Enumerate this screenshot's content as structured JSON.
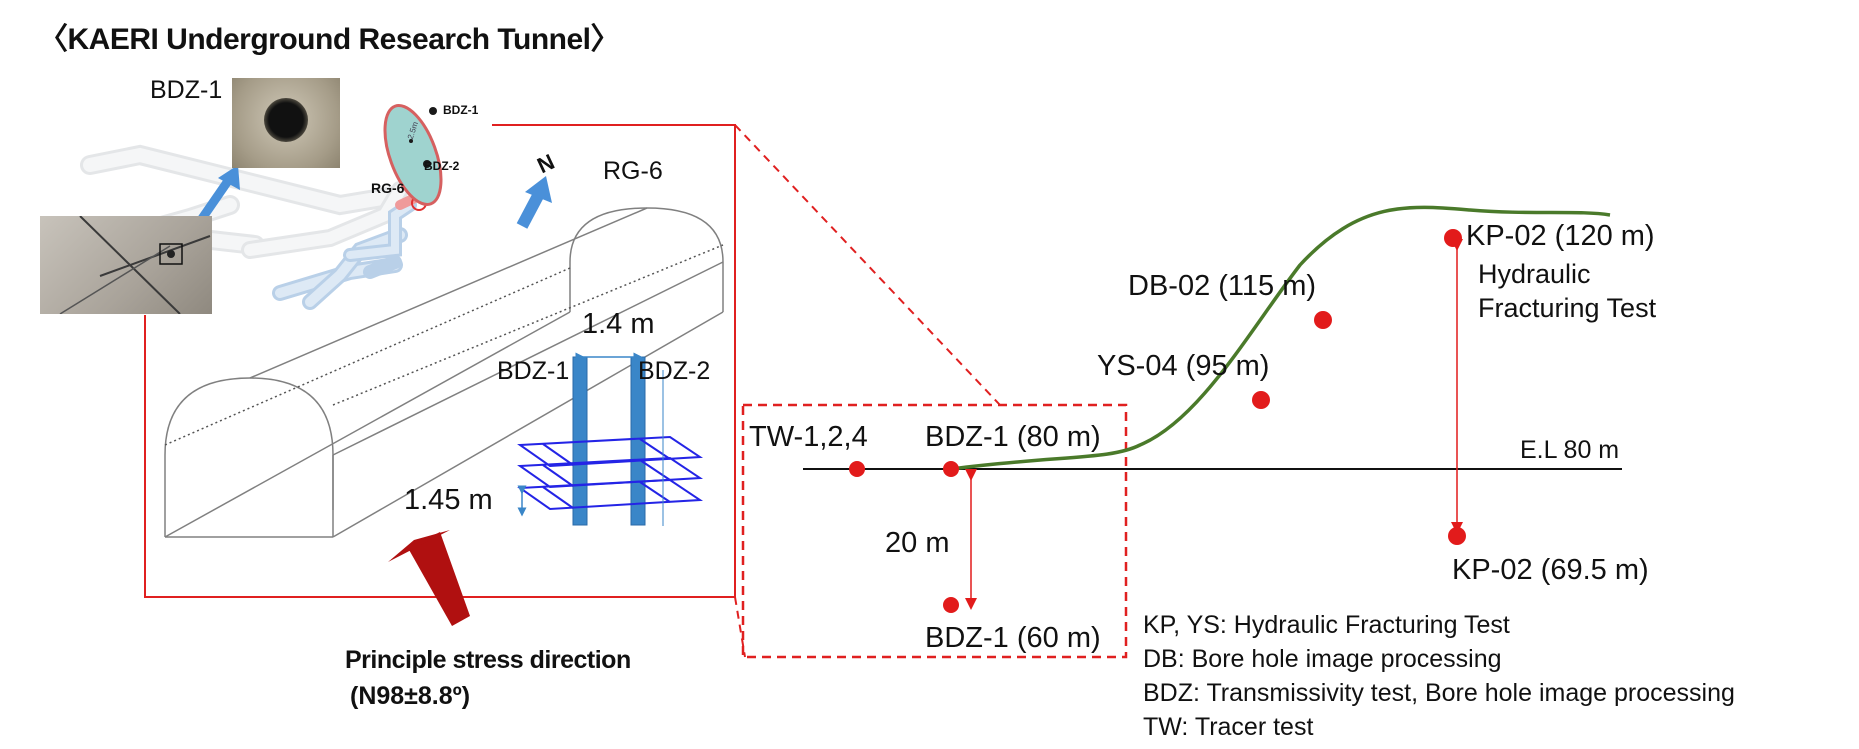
{
  "title": "〈KAERI Underground Research Tunnel〉",
  "inset": {
    "photo_label": "BDZ-1",
    "map_labels": [
      "BDZ-1",
      "BDZ-2",
      "RG-6",
      "2.5m"
    ]
  },
  "tunnel": {
    "rg_label": "RG-6",
    "width_label": "1.4 m",
    "bdz1_label": "BDZ-1",
    "bdz2_label": "BDZ-2",
    "spacing_label": "1.45 m",
    "north_label": "N",
    "stress_label": "Principle stress direction",
    "stress_value": "(N98±8.8º)"
  },
  "section": {
    "tw_label": "TW-1,2,4",
    "bdz80_label": "BDZ-1 (80 m)",
    "bdz60_label": "BDZ-1 (60 m)",
    "depth_label": "20 m",
    "el_label": "E.L 80 m",
    "ys_label": "YS-04 (95 m)",
    "db_label": "DB-02 (115 m)",
    "kp120_label": "KP-02 (120 m)",
    "kp_test_label_1": "Hydraulic",
    "kp_test_label_2": "Fracturing Test",
    "kp69_label": "KP-02 (69.5 m)"
  },
  "legend": [
    "KP, YS: Hydraulic Fracturing Test",
    "DB: Bore hole image processing",
    "BDZ: Transmissivity test, Bore hole image processing",
    "TW: Tracer test"
  ],
  "colors": {
    "red": "#e21b1b",
    "frame_red": "#e02020",
    "terrain_green": "#4a7a2a",
    "borehole_blue": "#3a86c8",
    "grid_blue": "#2424e6",
    "arrow_dark_red": "#b01010",
    "north_blue": "#4a90d9"
  }
}
